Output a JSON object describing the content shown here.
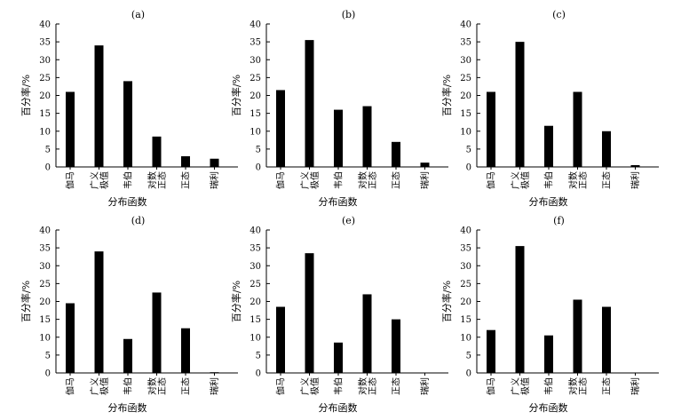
{
  "chart_data": [
    {
      "type": "bar",
      "title": "(a)",
      "categories": [
        [
          "伽马"
        ],
        [
          "广义",
          "极值"
        ],
        [
          "韦伯"
        ],
        [
          "对数",
          "正态"
        ],
        [
          "正态"
        ],
        [
          "瑞利"
        ]
      ],
      "values": [
        21,
        34,
        24,
        8.5,
        3,
        2.3
      ],
      "xlabel": "分布函数",
      "ylabel": "百分率/%",
      "ylim": [
        0,
        40
      ],
      "yticks": [
        0,
        5,
        10,
        15,
        20,
        25,
        30,
        35,
        40
      ],
      "grid": false
    },
    {
      "type": "bar",
      "title": "(b)",
      "categories": [
        [
          "伽马"
        ],
        [
          "广义",
          "极值"
        ],
        [
          "韦伯"
        ],
        [
          "对数",
          "正态"
        ],
        [
          "正态"
        ],
        [
          "瑞利"
        ]
      ],
      "values": [
        21.5,
        35.5,
        16,
        17,
        7,
        1.2
      ],
      "xlabel": "分布函数",
      "ylabel": "百分率/%",
      "ylim": [
        0,
        40
      ],
      "yticks": [
        0,
        5,
        10,
        15,
        20,
        25,
        30,
        35,
        40
      ],
      "grid": false
    },
    {
      "type": "bar",
      "title": "(c)",
      "categories": [
        [
          "伽马"
        ],
        [
          "广义",
          "极值"
        ],
        [
          "韦伯"
        ],
        [
          "对数",
          "正态"
        ],
        [
          "正态"
        ],
        [
          "瑞利"
        ]
      ],
      "values": [
        21,
        35,
        11.5,
        21,
        10,
        0.5
      ],
      "xlabel": "分布函数",
      "ylabel": "百分率/%",
      "ylim": [
        0,
        40
      ],
      "yticks": [
        0,
        5,
        10,
        15,
        20,
        25,
        30,
        35,
        40
      ],
      "grid": false
    },
    {
      "type": "bar",
      "title": "(d)",
      "categories": [
        [
          "伽马"
        ],
        [
          "广义",
          "极值"
        ],
        [
          "韦伯"
        ],
        [
          "对数",
          "正态"
        ],
        [
          "正态"
        ],
        [
          "瑞利"
        ]
      ],
      "values": [
        19.5,
        34,
        9.5,
        22.5,
        12.5,
        0.2
      ],
      "xlabel": "分布函数",
      "ylabel": "百分率/%",
      "ylim": [
        0,
        40
      ],
      "yticks": [
        0,
        5,
        10,
        15,
        20,
        25,
        30,
        35,
        40
      ],
      "grid": false
    },
    {
      "type": "bar",
      "title": "(e)",
      "categories": [
        [
          "伽马"
        ],
        [
          "广义",
          "极值"
        ],
        [
          "韦伯"
        ],
        [
          "对数",
          "正态"
        ],
        [
          "正态"
        ],
        [
          "瑞利"
        ]
      ],
      "values": [
        18.5,
        33.5,
        8.5,
        22,
        15,
        0
      ],
      "xlabel": "分布函数",
      "ylabel": "百分率/%",
      "ylim": [
        0,
        40
      ],
      "yticks": [
        0,
        5,
        10,
        15,
        20,
        25,
        30,
        35,
        40
      ],
      "grid": false
    },
    {
      "type": "bar",
      "title": "(f)",
      "categories": [
        [
          "伽马"
        ],
        [
          "广义",
          "极值"
        ],
        [
          "韦伯"
        ],
        [
          "对数",
          "正态"
        ],
        [
          "正态"
        ],
        [
          "瑞利"
        ]
      ],
      "values": [
        12,
        35.5,
        10.5,
        20.5,
        18.5,
        0
      ],
      "xlabel": "分布函数",
      "ylabel": "百分率/%",
      "ylim": [
        0,
        40
      ],
      "yticks": [
        0,
        5,
        10,
        15,
        20,
        25,
        30,
        35,
        40
      ],
      "grid": false
    }
  ]
}
